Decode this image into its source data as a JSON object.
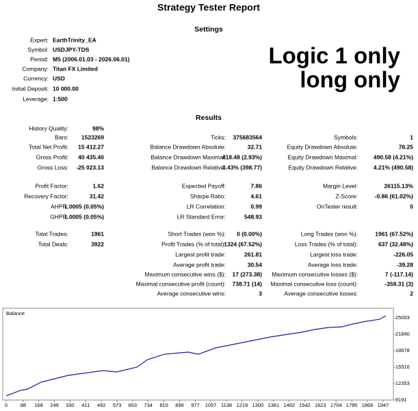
{
  "header": {
    "title": "Strategy Tester Report"
  },
  "settings": {
    "title": "Settings",
    "rows": [
      [
        "Expert:",
        "EarthTrinity_EA"
      ],
      [
        "Symbol:",
        "USDJPY-TDS"
      ],
      [
        "Period:",
        "M5 (2006.01.03 - 2026.06.01)"
      ],
      [
        "Company:",
        "Titan FX Limited"
      ],
      [
        "Currency:",
        "USD"
      ],
      [
        "Initial Deposit:",
        "10 000.00"
      ],
      [
        "Leverage:",
        "1:500"
      ]
    ]
  },
  "annotation": [
    "Logic 1 only",
    "long only"
  ],
  "results": {
    "title": "Results",
    "rows": [
      [
        [
          "History Quality:",
          "98%"
        ],
        null,
        null
      ],
      [
        [
          "Bars:",
          "1523269"
        ],
        [
          "Ticks:",
          "375683564"
        ],
        [
          "Symbols:",
          "1"
        ]
      ],
      [
        [
          "Total Net Profit:",
          "15 412.27"
        ],
        [
          "Balance Drawdown Absolute:",
          "32.71"
        ],
        [
          "Equity Drawdown Absolute:",
          "76.25"
        ]
      ],
      [
        [
          "Gross Profit:",
          "40 435.40"
        ],
        [
          "Balance Drawdown Maximal:",
          "418.48 (2.93%)"
        ],
        [
          "Equity Drawdown Maximal:",
          "490.58 (4.21%)"
        ]
      ],
      [
        [
          "Gross Loss:",
          "-25 023.13"
        ],
        [
          "Balance Drawdown Relative:",
          "3.43% (398.77)"
        ],
        [
          "Equity Drawdown Relative:",
          "4.21% (490.58)"
        ]
      ],
      [
        [
          "Profit Factor:",
          "1.62"
        ],
        [
          "Expected Payoff:",
          "7.86"
        ],
        [
          "Margin Level:",
          "26115.13%"
        ]
      ],
      [
        [
          "Recovery Factor:",
          "31.42"
        ],
        [
          "Sharpe Ratio:",
          "4.61"
        ],
        [
          "Z-Score:",
          "-0.86 (61.02%)"
        ]
      ],
      [
        [
          "AHPR:",
          "1.0005 (0.05%)"
        ],
        [
          "LR Correlation:",
          "0.99"
        ],
        [
          "OnTester result:",
          "0"
        ]
      ],
      [
        [
          "GHPR:",
          "1.0005 (0.05%)"
        ],
        [
          "LR Standard Error:",
          "548.93"
        ],
        null
      ],
      [
        [
          "Total Trades:",
          "1961"
        ],
        [
          "Short Trades (won %):",
          "0 (0.00%)"
        ],
        [
          "Long Trades (won %):",
          "1961 (67.52%)"
        ]
      ],
      [
        [
          "Total Deals:",
          "3922"
        ],
        [
          "Profit Trades (% of total):",
          "1324 (67.52%)"
        ],
        [
          "Loss Trades (% of total):",
          "637 (32.48%)"
        ]
      ],
      [
        null,
        [
          "Largest profit trade:",
          "261.81"
        ],
        [
          "Largest loss trade:",
          "-226.05"
        ]
      ],
      [
        null,
        [
          "Average profit trade:",
          "30.54"
        ],
        [
          "Average loss trade:",
          "-39.28"
        ]
      ],
      [
        null,
        [
          "Maximum consecutive wins ($):",
          "17 (273.38)"
        ],
        [
          "Maximum consecutive losses ($):",
          "7 (-117.14)"
        ]
      ],
      [
        null,
        [
          "Maximal consecutive profit (count):",
          "738.71 (14)"
        ],
        [
          "Maximal consecutive loss (count):",
          "-359.31 (3)"
        ]
      ],
      [
        null,
        [
          "Average consecutive wins:",
          "3"
        ],
        [
          "Average consecutive losses:",
          "2"
        ]
      ]
    ]
  },
  "chart_data": {
    "type": "line",
    "title": "Balance",
    "color": "#1a1aa0",
    "x": [
      0,
      74,
      110,
      180,
      320,
      500,
      570,
      675,
      730,
      818,
      940,
      993,
      1080,
      1187,
      1275,
      1364,
      1452,
      1523,
      1594,
      1664,
      1735,
      1788,
      1859,
      1929,
      1961
    ],
    "values": [
      10000,
      11040,
      11300,
      12620,
      13940,
      14860,
      14600,
      15520,
      16970,
      18020,
      18420,
      18020,
      19210,
      20000,
      20660,
      21320,
      21840,
      22240,
      22770,
      23160,
      23290,
      23820,
      24350,
      24740,
      25412
    ],
    "xlim": [
      -14,
      2000
    ],
    "ylim": [
      9191,
      26600
    ],
    "xticks": [
      0,
      88,
      168,
      249,
      330,
      411,
      492,
      573,
      653,
      734,
      815,
      896,
      977,
      1057,
      1138,
      1219,
      1300,
      1381,
      1462,
      1542,
      1623,
      1704,
      1785,
      1866,
      1947
    ],
    "yticks": [
      9191,
      12353,
      15516,
      18678,
      21840,
      25003
    ]
  }
}
